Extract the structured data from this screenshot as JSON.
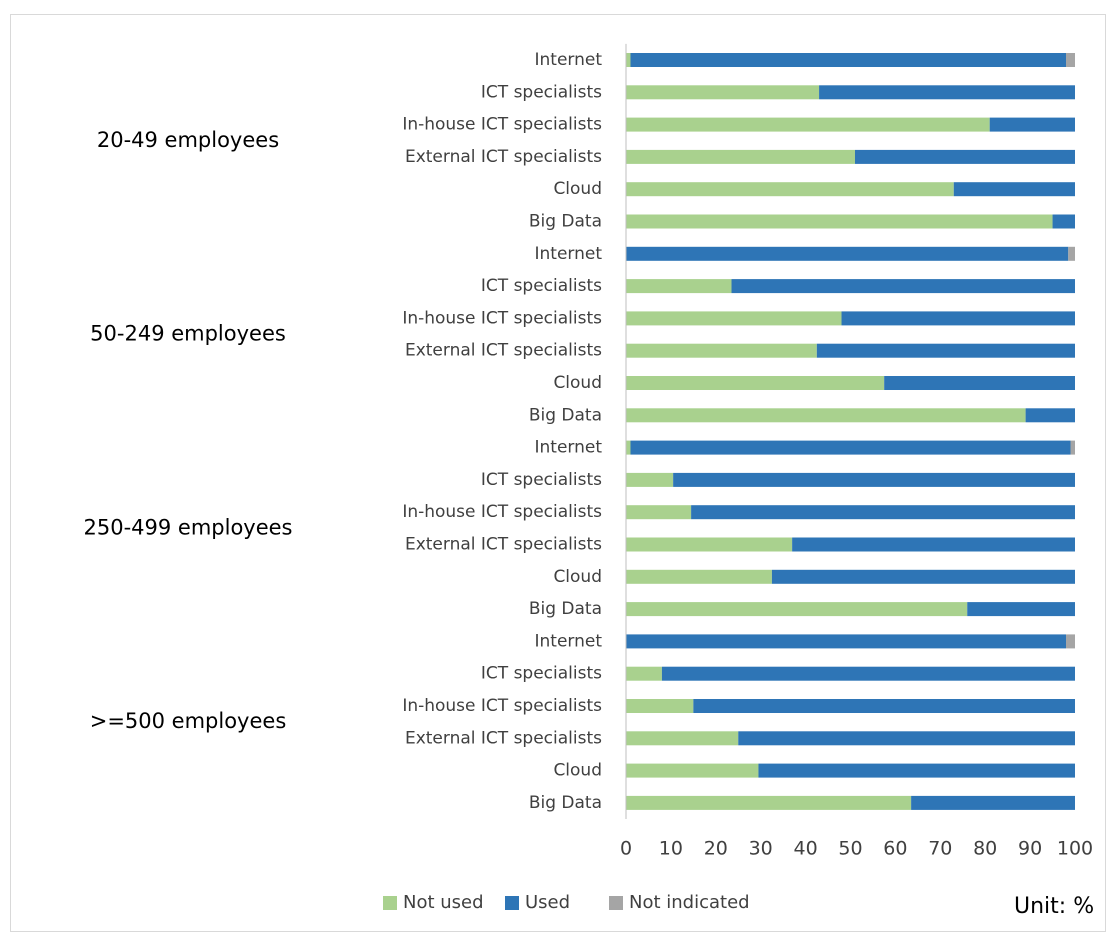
{
  "chart_data": {
    "type": "bar",
    "orientation": "horizontal",
    "stacked": true,
    "xlim": [
      0,
      100
    ],
    "xticks": [
      0,
      10,
      20,
      30,
      40,
      50,
      60,
      70,
      80,
      90,
      100
    ],
    "grid": false,
    "legend_position": "bottom",
    "unit_label": "Unit: %",
    "series": [
      {
        "name": "Not used",
        "color": "#a9d18e"
      },
      {
        "name": "Used",
        "color": "#2e75b6"
      },
      {
        "name": "Not indicated",
        "color": "#a5a5a5"
      }
    ],
    "groups": [
      {
        "label": "20-49 employees",
        "bars": [
          {
            "category": "Internet",
            "values": [
              1,
              97,
              2
            ]
          },
          {
            "category": "ICT specialists",
            "values": [
              43,
              57,
              0
            ]
          },
          {
            "category": "In-house ICT specialists",
            "values": [
              81,
              19,
              0
            ]
          },
          {
            "category": "External ICT specialists",
            "values": [
              51,
              49,
              0
            ]
          },
          {
            "category": "Cloud",
            "values": [
              73,
              27,
              0
            ]
          },
          {
            "category": "Big Data",
            "values": [
              95,
              5,
              0
            ]
          }
        ]
      },
      {
        "label": "50-249 employees",
        "bars": [
          {
            "category": "Internet",
            "values": [
              0,
              98.5,
              1.5
            ]
          },
          {
            "category": "ICT specialists",
            "values": [
              23.5,
              76.5,
              0
            ]
          },
          {
            "category": "In-house ICT specialists",
            "values": [
              48,
              52,
              0
            ]
          },
          {
            "category": "External ICT specialists",
            "values": [
              42.5,
              57.5,
              0
            ]
          },
          {
            "category": "Cloud",
            "values": [
              57.5,
              42.5,
              0
            ]
          },
          {
            "category": "Big Data",
            "values": [
              89,
              11,
              0
            ]
          }
        ]
      },
      {
        "label": "250-499 employees",
        "bars": [
          {
            "category": "Internet",
            "values": [
              1,
              98,
              1
            ]
          },
          {
            "category": "ICT specialists",
            "values": [
              10.5,
              89.5,
              0
            ]
          },
          {
            "category": "In-house ICT specialists",
            "values": [
              14.5,
              85.5,
              0
            ]
          },
          {
            "category": "External ICT specialists",
            "values": [
              37,
              63,
              0
            ]
          },
          {
            "category": "Cloud",
            "values": [
              32.5,
              67.5,
              0
            ]
          },
          {
            "category": "Big Data",
            "values": [
              76,
              24,
              0
            ]
          }
        ]
      },
      {
        "label": ">=500 employees",
        "bars": [
          {
            "category": "Internet",
            "values": [
              0,
              98,
              2
            ]
          },
          {
            "category": "ICT specialists",
            "values": [
              8,
              92,
              0
            ]
          },
          {
            "category": "In-house ICT specialists",
            "values": [
              15,
              85,
              0
            ]
          },
          {
            "category": "External ICT specialists",
            "values": [
              25,
              75,
              0
            ]
          },
          {
            "category": "Cloud",
            "values": [
              29.5,
              70.5,
              0
            ]
          },
          {
            "category": "Big Data",
            "values": [
              63.5,
              36.5,
              0
            ]
          }
        ]
      }
    ]
  }
}
